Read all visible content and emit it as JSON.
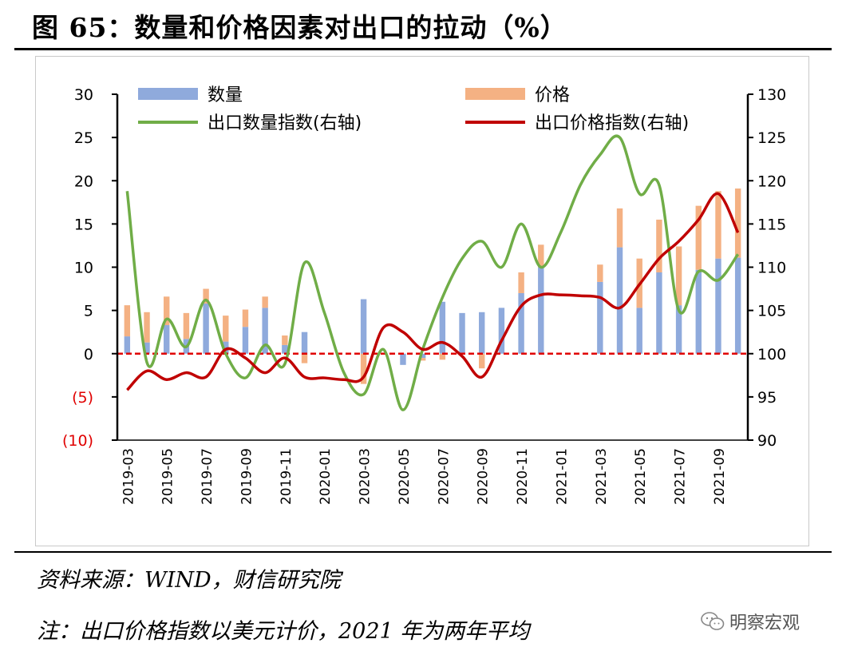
{
  "title": "图 65：数量和价格因素对出口的拉动（%）",
  "source": "资料来源：WIND，财信研究院",
  "note": "注：出口价格指数以美元计价，2021 年为两年平均",
  "watermark": "明察宏观",
  "colors": {
    "quantity_bar": "#8faadc",
    "price_bar": "#f4b183",
    "quantity_index_line": "#70ad47",
    "price_index_line": "#c00000",
    "zero_line": "#e00000",
    "negative_tick": "#e00000"
  },
  "chart_data": {
    "type": "bar+line",
    "stacked": true,
    "legend_position": "top",
    "grid": false,
    "left_axis": {
      "ylim": [
        -10,
        30
      ],
      "ticks": [
        -10,
        -5,
        0,
        5,
        10,
        15,
        20,
        25,
        30
      ],
      "tick_labels": [
        "(10)",
        "(5)",
        "0",
        "5",
        "10",
        "15",
        "20",
        "25",
        "30"
      ]
    },
    "right_axis": {
      "ylim": [
        90,
        130
      ],
      "ticks": [
        90,
        95,
        100,
        105,
        110,
        115,
        120,
        125,
        130
      ],
      "tick_labels": [
        "90",
        "95",
        "100",
        "105",
        "110",
        "115",
        "120",
        "125",
        "130"
      ]
    },
    "categories": [
      "2019-03",
      "2019-04",
      "2019-05",
      "2019-06",
      "2019-07",
      "2019-08",
      "2019-09",
      "2019-10",
      "2019-11",
      "2019-12",
      "2020-01",
      "2020-02",
      "2020-03",
      "2020-04",
      "2020-05",
      "2020-06",
      "2020-07",
      "2020-08",
      "2020-09",
      "2020-10",
      "2020-11",
      "2020-12",
      "2021-01",
      "2021-02",
      "2021-03",
      "2021-04",
      "2021-05",
      "2021-06",
      "2021-07",
      "2021-08",
      "2021-09",
      "2021-10"
    ],
    "x_tick_labels": [
      "2019-03",
      "",
      "2019-05",
      "",
      "2019-07",
      "",
      "2019-09",
      "",
      "2019-11",
      "",
      "2020-01",
      "",
      "2020-03",
      "",
      "2020-05",
      "",
      "2020-07",
      "",
      "2020-09",
      "",
      "2020-11",
      "",
      "2021-01",
      "",
      "2021-03",
      "",
      "2021-05",
      "",
      "2021-07",
      "",
      "2021-09",
      ""
    ],
    "bar_series": [
      {
        "name": "数量",
        "values": [
          2.0,
          1.3,
          3.3,
          1.7,
          5.8,
          1.4,
          3.1,
          5.3,
          1.0,
          2.5,
          null,
          null,
          6.3,
          0,
          -1.3,
          -0.5,
          6.0,
          4.7,
          4.8,
          5.3,
          7.0,
          10.0,
          null,
          null,
          8.3,
          12.3,
          5.3,
          9.4,
          5.6,
          9.7,
          11.0,
          11.1
        ]
      },
      {
        "name": "价格",
        "values": [
          3.6,
          3.5,
          3.3,
          3.0,
          1.7,
          3.0,
          2.0,
          1.3,
          1.1,
          -1.1,
          null,
          null,
          -3.5,
          0,
          0,
          -0.3,
          -0.7,
          0,
          -1.7,
          0,
          2.4,
          2.6,
          null,
          null,
          2.0,
          4.5,
          5.7,
          6.1,
          6.8,
          7.4,
          7.8,
          8.0
        ]
      }
    ],
    "line_series": [
      {
        "name": "出口数量指数(右轴)",
        "axis": "right",
        "values": [
          118.8,
          99.0,
          104.0,
          100.8,
          106.2,
          100.0,
          97.2,
          101.0,
          98.8,
          110.5,
          104.8,
          97.8,
          95.3,
          100.5,
          93.5,
          100.5,
          106.5,
          111.0,
          113.0,
          110.0,
          115.0,
          110.0,
          114.0,
          119.5,
          123.0,
          125.0,
          118.5,
          119.5,
          105.0,
          109.5,
          108.5,
          111.5
        ]
      },
      {
        "name": "出口价格指数(右轴)",
        "axis": "right",
        "values": [
          95.8,
          98.0,
          97.0,
          97.8,
          97.3,
          100.5,
          99.5,
          97.8,
          99.5,
          97.3,
          97.2,
          97.0,
          97.3,
          103.0,
          102.5,
          100.5,
          101.3,
          99.7,
          97.3,
          101.5,
          105.5,
          106.8,
          106.8,
          106.7,
          106.5,
          105.3,
          108.0,
          111.0,
          113.0,
          115.5,
          118.5,
          114.0
        ]
      }
    ]
  }
}
